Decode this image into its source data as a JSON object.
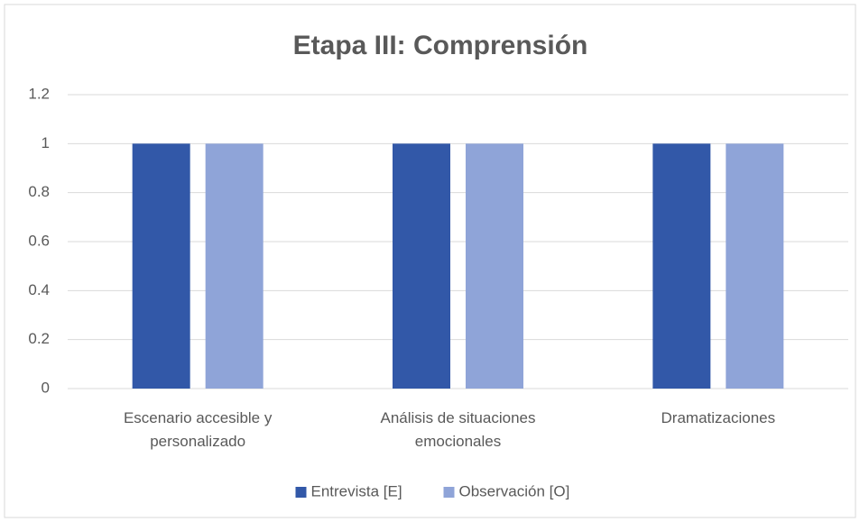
{
  "chart_data": {
    "type": "bar",
    "title": "Etapa III: Comprensión",
    "categories": [
      "Escenario accesible y personalizado",
      "Análisis de situaciones emocionales",
      "Dramatizaciones"
    ],
    "series": [
      {
        "name": "Entrevista [E]",
        "color": "#3258a8",
        "values": [
          1,
          1,
          1
        ]
      },
      {
        "name": "Observación [O]",
        "color": "#8fa4d8",
        "values": [
          1,
          1,
          1
        ]
      }
    ],
    "ylim": [
      0,
      1.2
    ],
    "yticks": [
      0,
      0.2,
      0.4,
      0.6,
      0.8,
      1,
      1.2
    ],
    "grid": true,
    "legend": "bottom"
  }
}
